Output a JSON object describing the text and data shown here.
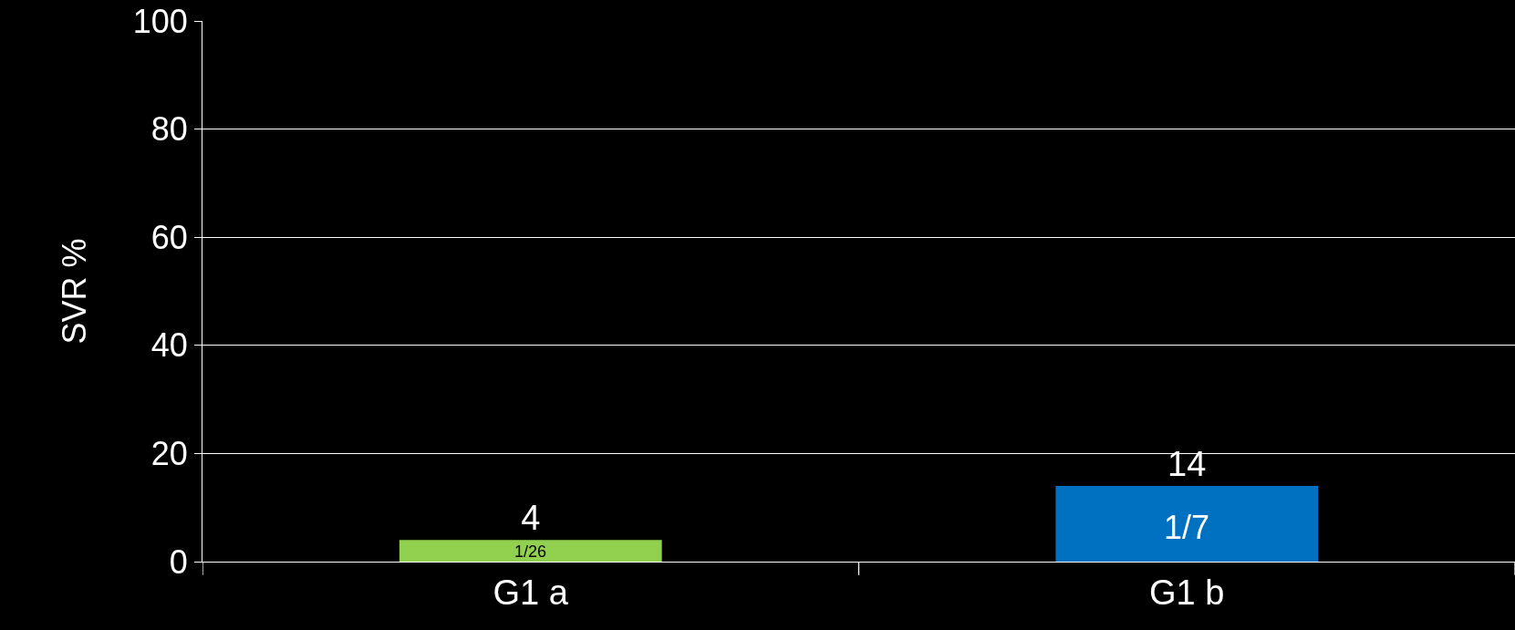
{
  "chart_data": {
    "type": "bar",
    "ylabel": "SVR %",
    "categories": [
      "G1 a",
      "G1 b"
    ],
    "values": [
      4,
      14
    ],
    "colors": [
      "#92d050",
      "#0070c0"
    ],
    "data_labels": true,
    "annotations": [
      "1/26",
      "1/7"
    ],
    "ylim": [
      0,
      100
    ],
    "yticks": [
      0,
      20,
      40,
      60,
      80,
      100
    ],
    "grid": "y",
    "legend": false
  }
}
